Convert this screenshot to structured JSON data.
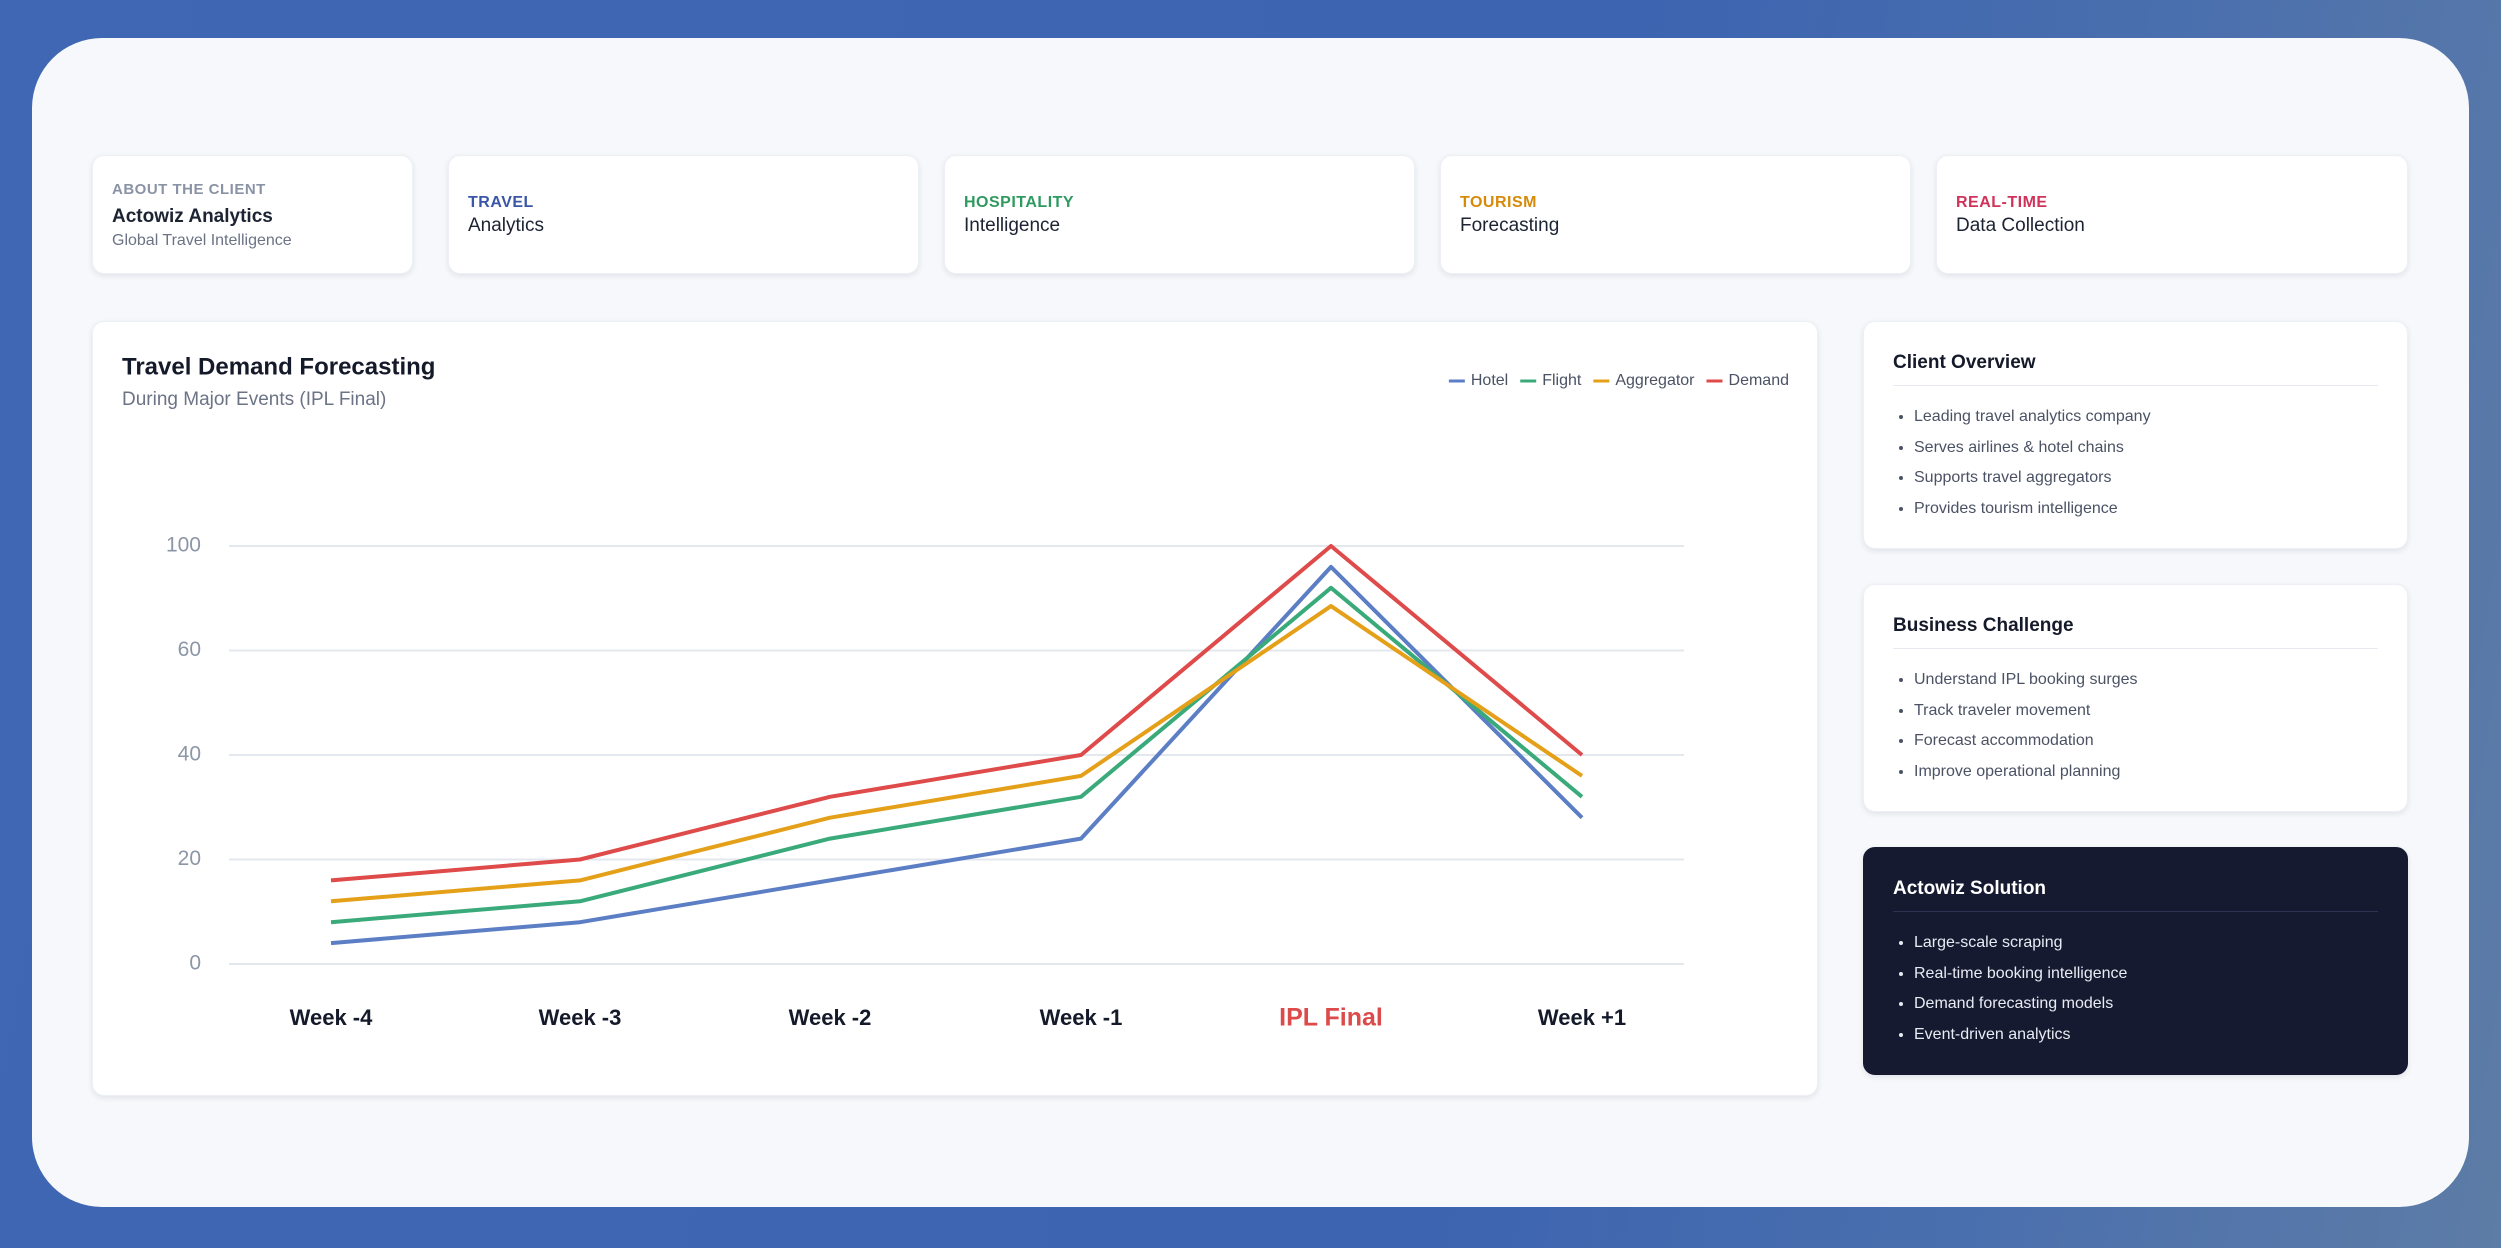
{
  "cards": [
    {
      "label": "ABOUT THE CLIENT",
      "title": "Actowiz Analytics",
      "subtitle": "Global Travel Intelligence",
      "color": "#8a93a5"
    },
    {
      "label": "TRAVEL",
      "title": "Analytics",
      "color": "#3b56a8"
    },
    {
      "label": "HOSPITALITY",
      "title": "Intelligence",
      "color": "#2e9a5f"
    },
    {
      "label": "TOURISM",
      "title": "Forecasting",
      "color": "#d68a0a"
    },
    {
      "label": "REAL-TIME",
      "title": "Data Collection",
      "color": "#d0335a"
    }
  ],
  "chart_data": {
    "type": "line",
    "title": "Travel Demand Forecasting",
    "subtitle": "During Major Events (IPL Final)",
    "categories": [
      "Week -4",
      "Week -3",
      "Week -2",
      "Week -1",
      "IPL Final",
      "Week +1"
    ],
    "highlight_index": 4,
    "highlight_color": "#dc4a4a",
    "series": [
      {
        "name": "Hotel",
        "color": "#5b7ec4",
        "values": [
          4,
          8,
          16,
          24,
          92,
          28
        ]
      },
      {
        "name": "Flight",
        "color": "#3aaa7a",
        "values": [
          8,
          12,
          24,
          32,
          84,
          32
        ]
      },
      {
        "name": "Aggregator",
        "color": "#e5a01a",
        "values": [
          12,
          16,
          28,
          36,
          77,
          36
        ]
      },
      {
        "name": "Demand",
        "color": "#df4a4a",
        "values": [
          16,
          20,
          32,
          40,
          100,
          40
        ]
      }
    ],
    "ylim": [
      0,
      100
    ],
    "yticks": [
      0,
      20,
      40,
      60,
      100
    ],
    "grid": true,
    "legend": "top-right"
  },
  "panels": [
    {
      "title": "Client Overview",
      "items": [
        "Leading travel analytics company",
        "Serves airlines & hotel chains",
        "Supports travel aggregators",
        "Provides tourism intelligence"
      ]
    },
    {
      "title": "Business Challenge",
      "items": [
        "Understand IPL booking surges",
        "Track traveler movement",
        "Forecast accommodation",
        "Improve operational planning"
      ]
    },
    {
      "title": "Actowiz Solution",
      "items": [
        "Large-scale scraping",
        "Real-time booking intelligence",
        "Demand forecasting models",
        "Event-driven analytics"
      ]
    }
  ]
}
